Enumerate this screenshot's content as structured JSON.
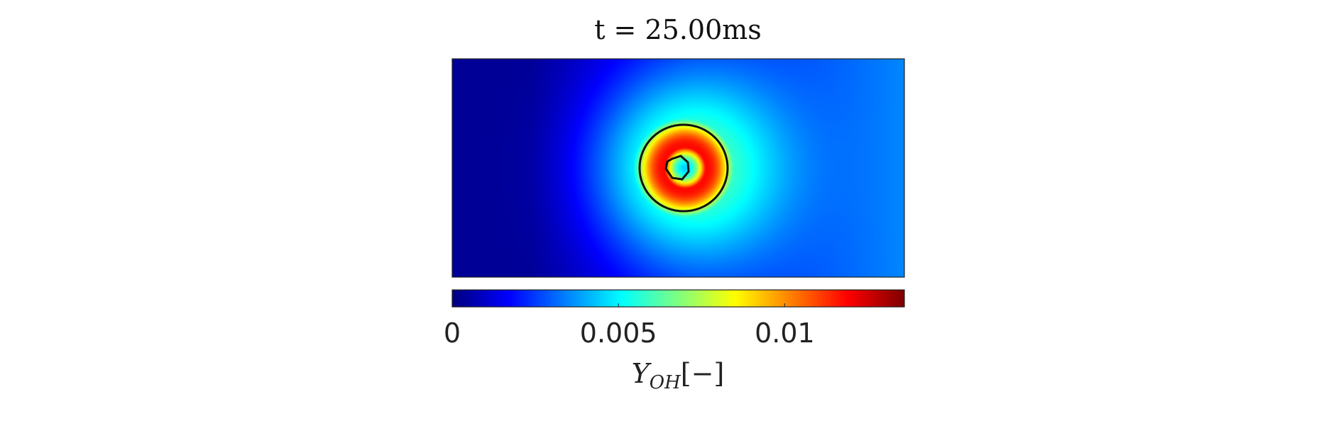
{
  "chart_data": {
    "type": "heatmap",
    "title": "t = 25.00ms",
    "colorbar": {
      "label_main": "Y",
      "label_sub": "OH",
      "label_units": "[−]",
      "range": [
        0,
        0.0136
      ],
      "ticks": [
        0,
        0.005,
        0.01
      ],
      "tick_labels": [
        "0",
        "0.005",
        "0.01"
      ],
      "colormap": "jet"
    },
    "field": {
      "background_left": 0.0003,
      "background_right": 0.0035,
      "peak_value": 0.0118,
      "center_value": 0.0045,
      "halo_value": 0.0052
    },
    "contours": [
      {
        "name": "outer"
      },
      {
        "name": "inner"
      }
    ],
    "grid": false,
    "axes_visible": false
  }
}
